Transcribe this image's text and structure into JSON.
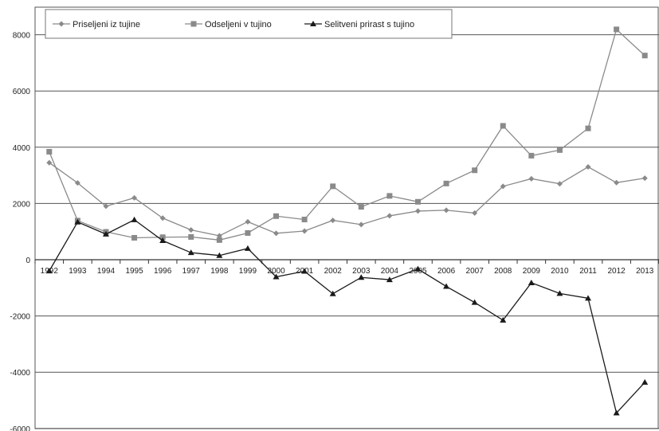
{
  "chart_data": {
    "type": "line",
    "title": "",
    "xlabel": "",
    "ylabel": "",
    "categories": [
      "1992",
      "1993",
      "1994",
      "1995",
      "1996",
      "1997",
      "1998",
      "1999",
      "2000",
      "2001",
      "2002",
      "2003",
      "2004",
      "2005",
      "2006",
      "2007",
      "2008",
      "2009",
      "2010",
      "2011",
      "2012",
      "2013"
    ],
    "ylim": [
      -6000,
      9000
    ],
    "yticks": [
      -6000,
      -4000,
      -2000,
      0,
      2000,
      4000,
      6000,
      8000
    ],
    "grid": true,
    "legend_position": "top-left",
    "series": [
      {
        "name": "Priseljeni iz tujine",
        "marker": "diamond",
        "color": "#8a8a8a",
        "values": [
          3450,
          2730,
          1900,
          2200,
          1480,
          1060,
          850,
          1350,
          940,
          1020,
          1400,
          1250,
          1560,
          1730,
          1760,
          1660,
          2610,
          2880,
          2700,
          3300,
          2740,
          2900
        ]
      },
      {
        "name": "Odseljeni v tujino",
        "marker": "square",
        "color": "#8a8a8a",
        "values": [
          3840,
          1390,
          990,
          780,
          800,
          810,
          700,
          950,
          1550,
          1430,
          2610,
          1880,
          2270,
          2060,
          2710,
          3180,
          4760,
          3700,
          3900,
          4670,
          8190,
          7260
        ]
      },
      {
        "name": "Selitveni prirast s tujino",
        "marker": "triangle",
        "color": "#1a1a1a",
        "values": [
          -400,
          1340,
          910,
          1420,
          680,
          250,
          150,
          400,
          -610,
          -410,
          -1210,
          -630,
          -710,
          -330,
          -950,
          -1520,
          -2150,
          -820,
          -1200,
          -1370,
          -5450,
          -4360
        ]
      }
    ]
  }
}
